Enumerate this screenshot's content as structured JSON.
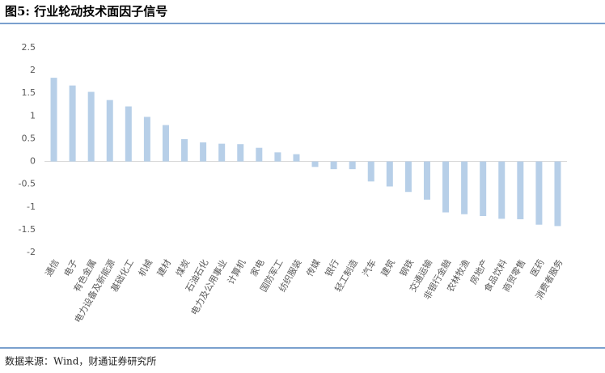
{
  "chart_data": {
    "type": "bar",
    "title": "图5: 行业轮动技术面因子信号",
    "categories": [
      "通信",
      "电子",
      "有色金属",
      "电力设备及新能源",
      "基础化工",
      "机械",
      "建材",
      "煤炭",
      "石油石化",
      "电力及公用事业",
      "计算机",
      "家电",
      "国防军工",
      "纺织服装",
      "传媒",
      "银行",
      "轻工制造",
      "汽车",
      "建筑",
      "钢铁",
      "交通运输",
      "非银行金融",
      "农林牧渔",
      "房地产",
      "食品饮料",
      "商贸零售",
      "医药",
      "消费者服务"
    ],
    "values": [
      1.84,
      1.67,
      1.53,
      1.35,
      1.21,
      0.98,
      0.8,
      0.49,
      0.42,
      0.39,
      0.38,
      0.3,
      0.2,
      0.16,
      -0.12,
      -0.17,
      -0.17,
      -0.44,
      -0.55,
      -0.67,
      -0.84,
      -1.12,
      -1.16,
      -1.2,
      -1.26,
      -1.27,
      -1.39,
      -1.42
    ],
    "color": "#b7cfe8",
    "ylim": [
      -2,
      2.5
    ],
    "yticks": [
      2.5,
      2,
      1.5,
      1,
      0.5,
      0,
      -0.5,
      -1,
      -1.5,
      -2
    ],
    "grid": false
  },
  "source": "数据来源：Wind，财通证券研究所"
}
